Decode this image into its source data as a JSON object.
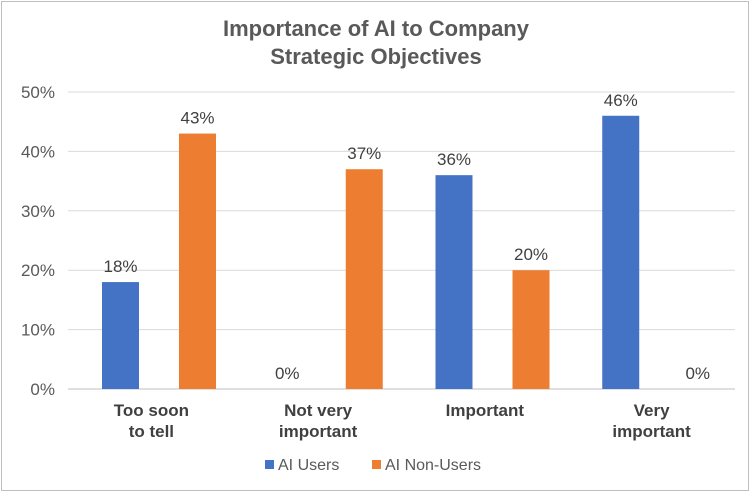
{
  "chart_data": {
    "type": "bar",
    "title_lines": [
      "Importance of AI to Company",
      "Strategic Objectives"
    ],
    "categories": [
      [
        "Too soon",
        "to tell"
      ],
      [
        "Not very",
        "important"
      ],
      [
        "Important"
      ],
      [
        "Very",
        "important"
      ]
    ],
    "series": [
      {
        "name": "AI Users",
        "color": "#4472c4",
        "values": [
          18,
          0,
          36,
          46
        ],
        "labels": [
          "18%",
          "0%",
          "36%",
          "46%"
        ]
      },
      {
        "name": "AI Non-Users",
        "color": "#ed7d31",
        "values": [
          43,
          37,
          20,
          0
        ],
        "labels": [
          "43%",
          "37%",
          "20%",
          "0%"
        ]
      }
    ],
    "yticks": [
      {
        "value": 0,
        "label": "0%"
      },
      {
        "value": 10,
        "label": "10%"
      },
      {
        "value": 20,
        "label": "20%"
      },
      {
        "value": 30,
        "label": "30%"
      },
      {
        "value": 40,
        "label": "40%"
      },
      {
        "value": 50,
        "label": "50%"
      }
    ],
    "ylim": [
      0,
      50
    ],
    "grid": true,
    "legend_position": "bottom"
  }
}
